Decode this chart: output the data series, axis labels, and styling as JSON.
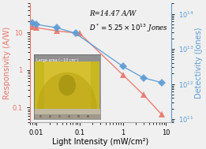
{
  "xlabel": "Light Intensity (mW/cm²)",
  "ylabel_left": "Responsivity (A/W)",
  "ylabel_right": "Detectivity (Jones)",
  "annotation_line1": "R=14.47 A/W",
  "annotation_line2": "D*=5.25 × 10$^{13}$ Jones",
  "responsivity_x": [
    0.008,
    0.01,
    0.03,
    0.1,
    1.0,
    3.0,
    8.0
  ],
  "responsivity_y": [
    14.5,
    13.5,
    11.0,
    9.5,
    0.75,
    0.22,
    0.065
  ],
  "detectivity_x": [
    0.008,
    0.01,
    0.03,
    0.08,
    1.0,
    3.0,
    8.0
  ],
  "detectivity_y": [
    55000000000000.0,
    50000000000000.0,
    40000000000000.0,
    28000000000000.0,
    3200000000000.0,
    1500000000000.0,
    1100000000000.0
  ],
  "resp_color": "#e8756a",
  "det_color": "#5b9bd5",
  "inset_label": "Large-area (~10 cm²)",
  "xlim": [
    0.007,
    13
  ],
  "ylim_left": [
    0.04,
    60
  ],
  "ylim_right": [
    80000000000.0,
    200000000000000.0
  ],
  "bg_color": "#f0f0f0",
  "figsize": [
    2.61,
    1.89
  ],
  "dpi": 100
}
